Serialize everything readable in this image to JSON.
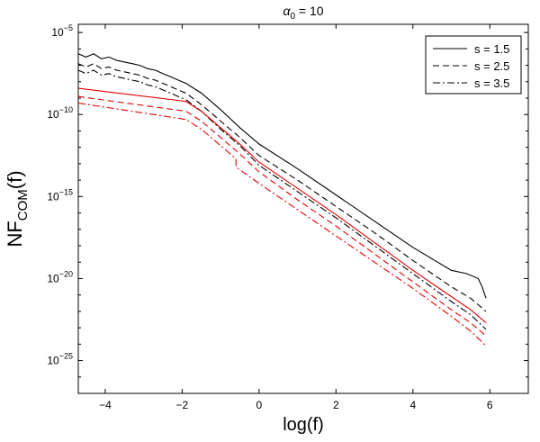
{
  "chart_data": {
    "type": "line",
    "title": {
      "base": "α",
      "sub": "0",
      "rest": " = 10"
    },
    "xlabel": "log(f)",
    "ylabel": {
      "base": "NF",
      "sub": "COM",
      "rest": "(f)"
    },
    "xlim": [
      -4.7,
      7.0
    ],
    "ylim_log10": [
      -27.0,
      -4.5
    ],
    "yscale": "log",
    "x_ticks": [
      -4,
      -2,
      0,
      2,
      4,
      6
    ],
    "x_tick_labels": [
      "−4",
      "−2",
      "0",
      "2",
      "4",
      "6"
    ],
    "y_ticks_log10": [
      -5,
      -10,
      -15,
      -20,
      -25
    ],
    "y_tick_labels": [
      {
        "base": "10",
        "exp": "−5"
      },
      {
        "base": "10",
        "exp": "−10"
      },
      {
        "base": "10",
        "exp": "−15"
      },
      {
        "base": "10",
        "exp": "−20"
      },
      {
        "base": "10",
        "exp": "−25"
      }
    ],
    "legend_position": "top-right",
    "legend": [
      {
        "label": "s = 1.5",
        "dash": "solid"
      },
      {
        "label": "s = 2.5",
        "dash": "dashed"
      },
      {
        "label": "s = 3.5",
        "dash": "dashdot"
      }
    ],
    "series": [
      {
        "color": "#000000",
        "dash": "solid",
        "log10_y": true,
        "x": [
          -4.7,
          -4.5,
          -4.3,
          -4.1,
          -3.9,
          -3.7,
          -3.5,
          -3.3,
          -3.1,
          -2.9,
          -2.7,
          -2.5,
          -2.3,
          -2.1,
          -1.9,
          -1.5,
          -1.0,
          -0.5,
          0.0,
          1.0,
          2.0,
          3.0,
          4.0,
          5.0,
          5.4,
          5.7,
          5.8,
          5.9
        ],
        "y": [
          -6.3,
          -6.5,
          -6.3,
          -6.6,
          -6.5,
          -6.7,
          -6.8,
          -6.9,
          -7.0,
          -7.2,
          -7.3,
          -7.5,
          -7.7,
          -7.9,
          -8.1,
          -8.7,
          -9.7,
          -10.8,
          -11.8,
          -13.3,
          -14.9,
          -16.5,
          -18.1,
          -19.5,
          -19.7,
          -20.0,
          -20.5,
          -21.2
        ]
      },
      {
        "color": "#000000",
        "dash": "dashed",
        "log10_y": true,
        "x": [
          -4.7,
          -4.5,
          -4.3,
          -4.1,
          -3.9,
          -3.7,
          -3.5,
          -3.3,
          -3.1,
          -2.9,
          -2.7,
          -2.5,
          -2.3,
          -2.1,
          -1.9,
          -1.5,
          -1.0,
          -0.5,
          0.0,
          1.0,
          2.0,
          3.0,
          4.0,
          5.0,
          5.5,
          5.9
        ],
        "y": [
          -6.9,
          -7.1,
          -6.9,
          -7.2,
          -7.1,
          -7.3,
          -7.4,
          -7.5,
          -7.6,
          -7.8,
          -7.9,
          -8.1,
          -8.3,
          -8.5,
          -8.7,
          -9.4,
          -10.4,
          -11.4,
          -12.5,
          -14.0,
          -15.6,
          -17.2,
          -18.9,
          -20.5,
          -21.2,
          -22.0
        ]
      },
      {
        "color": "#000000",
        "dash": "dashdot",
        "log10_y": true,
        "x": [
          -4.7,
          -4.5,
          -4.3,
          -4.1,
          -3.9,
          -3.7,
          -3.5,
          -3.3,
          -3.1,
          -2.9,
          -2.7,
          -2.5,
          -2.3,
          -2.1,
          -1.9,
          -1.5,
          -1.0,
          -0.5,
          0.0,
          1.0,
          2.0,
          3.0,
          4.0,
          5.0,
          5.5,
          5.9
        ],
        "y": [
          -7.3,
          -7.5,
          -7.3,
          -7.6,
          -7.5,
          -7.7,
          -7.8,
          -7.9,
          -8.0,
          -8.2,
          -8.3,
          -8.5,
          -8.7,
          -8.9,
          -9.1,
          -9.8,
          -10.9,
          -11.9,
          -13.1,
          -14.7,
          -16.3,
          -18.0,
          -19.7,
          -21.4,
          -22.2,
          -23.1
        ]
      },
      {
        "color": "#e00000",
        "dash": "solid",
        "log10_y": true,
        "x": [
          -4.7,
          -1.9,
          -1.5,
          -1.0,
          -0.5,
          0.0,
          1.0,
          2.0,
          3.0,
          4.0,
          5.0,
          5.5,
          5.9
        ],
        "y": [
          -8.4,
          -9.2,
          -9.8,
          -10.8,
          -11.8,
          -12.9,
          -14.5,
          -16.1,
          -17.8,
          -19.5,
          -21.1,
          -21.9,
          -22.7
        ]
      },
      {
        "color": "#e00000",
        "dash": "dashed",
        "log10_y": true,
        "x": [
          -4.7,
          -1.9,
          -1.5,
          -1.0,
          -0.5,
          0.0,
          1.0,
          2.0,
          3.0,
          4.0,
          5.0,
          5.5,
          5.9
        ],
        "y": [
          -8.9,
          -9.8,
          -10.4,
          -11.4,
          -12.4,
          -13.5,
          -15.2,
          -16.8,
          -18.5,
          -20.2,
          -21.9,
          -22.7,
          -23.5
        ]
      },
      {
        "color": "#e00000",
        "dash": "dashdot",
        "log10_y": true,
        "x": [
          -4.7,
          -1.9,
          -1.5,
          -1.0,
          -0.6,
          -0.6,
          0.0,
          1.0,
          2.0,
          3.0,
          4.0,
          5.0,
          5.5,
          5.9
        ],
        "y": [
          -9.3,
          -10.3,
          -10.9,
          -11.9,
          -12.7,
          -13.2,
          -14.2,
          -15.8,
          -17.4,
          -19.0,
          -20.6,
          -22.3,
          -23.2,
          -24.1
        ]
      }
    ]
  }
}
